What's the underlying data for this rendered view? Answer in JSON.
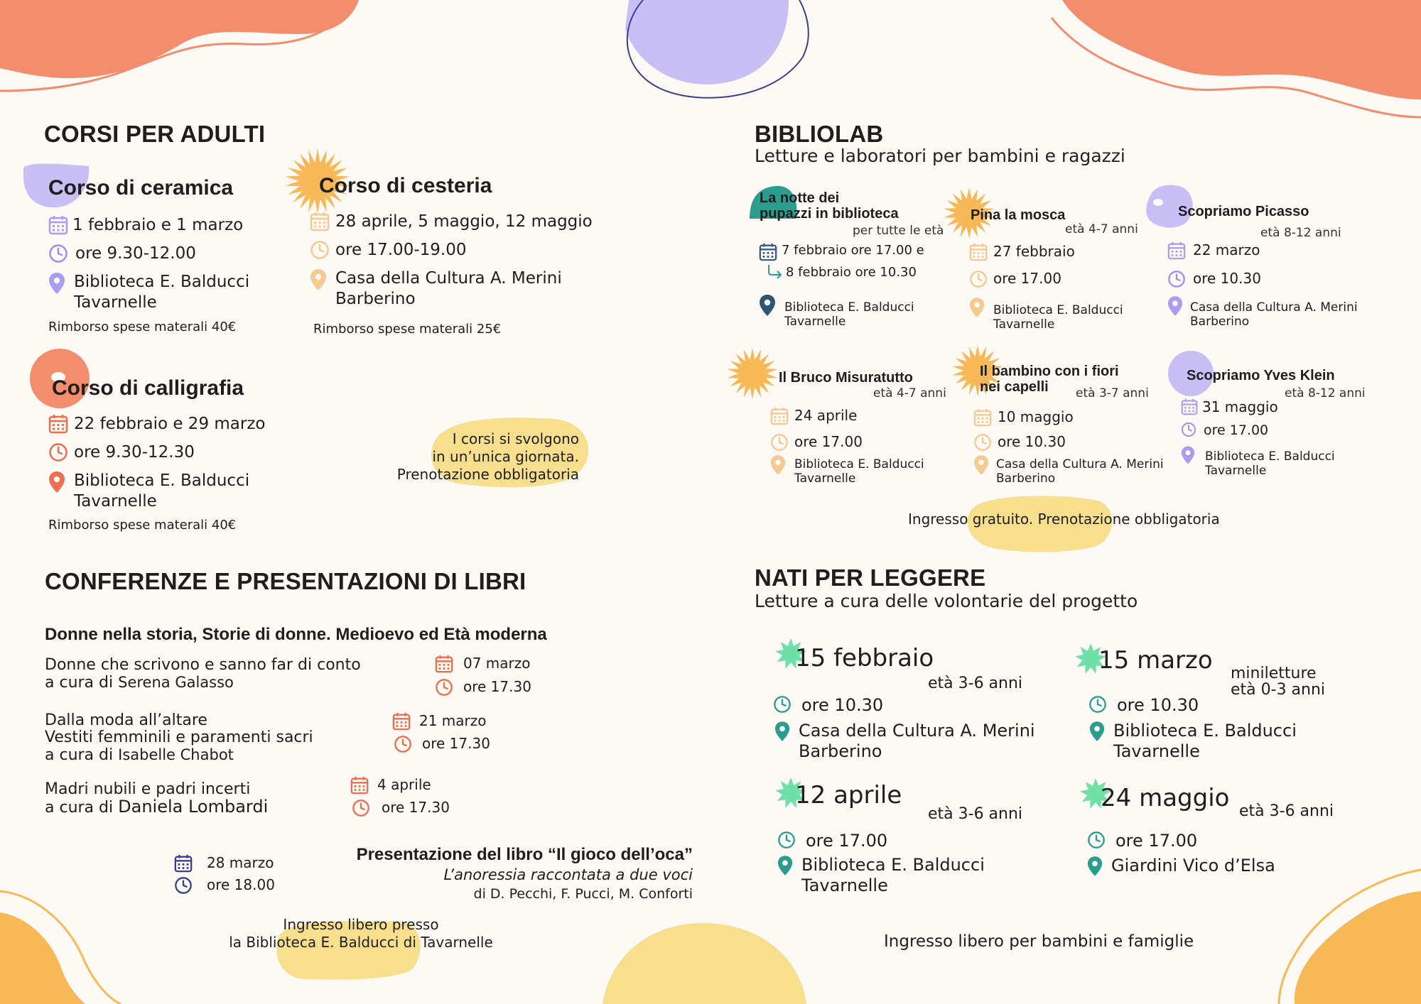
{
  "colors": {
    "coral": "#f28d6d",
    "lavender": "#c8c0f5",
    "yellow": "#f7df8e",
    "orange": "#f7b957",
    "teal": "#2a9d8f",
    "green": "#6fe0a8",
    "navy": "#3a3f8f",
    "calendar_orange": "#f0a36b",
    "purple_icon": "#9f8ff0",
    "red_icon": "#ee6e4d"
  },
  "adulti": {
    "heading": "CORSI PER ADULTI",
    "ceramica": {
      "title": "Corso di ceramica",
      "date": "1 febbraio e 1 marzo",
      "time": "ore 9.30-12.00",
      "place1": "Biblioteca E. Balducci",
      "place2": "Tavarnelle",
      "fee": "Rimborso spese materali 40€"
    },
    "cesteria": {
      "title": "Corso di cesteria",
      "date": "28 aprile, 5 maggio, 12 maggio",
      "time": "ore 17.00-19.00",
      "place1": "Casa della Cultura A. Merini",
      "place2": "Barberino",
      "fee": "Rimborso spese materali 25€"
    },
    "calligrafia": {
      "title": "Corso di calligrafia",
      "date": "22 febbraio  e 29 marzo",
      "time": "ore 9.30-12.30",
      "place1": "Biblioteca E. Balducci",
      "place2": "Tavarnelle",
      "fee": "Rimborso spese materali 40€"
    },
    "note1": "I corsi si svolgono",
    "note2": "in un’unica giornata.",
    "note3": "Prenotazione obbligatoria"
  },
  "conferenze": {
    "heading": "CONFERENZE E PRESENTAZIONI DI LIBRI",
    "series_title": "Donne nella storia, Storie di donne.  Medioevo ed Età moderna",
    "items": [
      {
        "line1": "Donne che scrivono e sanno far di conto",
        "cura": "a cura di",
        "author": "Serena Galasso",
        "date": "07 marzo",
        "time": "ore 17.30"
      },
      {
        "line1": "Dalla moda all’altare",
        "line2": "Vestiti femminili e paramenti sacri",
        "cura": "a cura di",
        "author": "Isabelle Chabot",
        "date": "21 marzo",
        "time": "ore 17.30"
      },
      {
        "line1": "Madri nubili e padri incerti",
        "cura": "a cura di",
        "author": "Daniela Lombardi",
        "date": "4 aprile",
        "time": "ore 17.30"
      }
    ],
    "presentazione": {
      "date": "28 marzo",
      "time": "ore 18.00",
      "title": "Presentazione del libro “Il gioco dell’oca”",
      "subtitle": "L’anoressia raccontata a due voci",
      "authors": "di D. Pecchi, F. Pucci, M. Conforti"
    },
    "note1": "Ingresso libero presso",
    "note2": "la Biblioteca E. Balducci di Tavarnelle"
  },
  "bibliolab": {
    "heading": "BIBLIOLAB",
    "subheading": "Letture e laboratori per bambini e ragazzi",
    "labs": [
      {
        "title1": "La notte dei",
        "title2": "pupazzi in biblioteca",
        "age": "per tutte le età",
        "date1": "7 febbraio ore 17.00 e",
        "date2": "8 febbraio ore 10.30",
        "place1": "Biblioteca E. Balducci",
        "place2": "Tavarnelle"
      },
      {
        "title1": "Pina la mosca",
        "age": "età 4-7 anni",
        "date": "27 febbraio",
        "time": "ore 17.00",
        "place1": "Biblioteca E. Balducci",
        "place2": "Tavarnelle"
      },
      {
        "title1": "Scopriamo Picasso",
        "age": "età 8-12 anni",
        "date": "22 marzo",
        "time": "ore 10.30",
        "place1": "Casa della Cultura A. Merini",
        "place2": "Barberino"
      },
      {
        "title1": "Il Bruco Misuratutto",
        "age": "età 4-7 anni",
        "date": "24 aprile",
        "time": "ore 17.00",
        "place1": "Biblioteca E. Balducci",
        "place2": "Tavarnelle"
      },
      {
        "title1": "Il bambino con i fiori",
        "title2": "nei capelli",
        "age": "età 3-7 anni",
        "date": "10 maggio",
        "time": "ore 10.30",
        "place1": "Casa della Cultura A. Merini",
        "place2": "Barberino"
      },
      {
        "title1": "Scopriamo Yves Klein",
        "age": "età 8-12 anni",
        "date": "31 maggio",
        "time": "ore 17.00",
        "place1": "Biblioteca E. Balducci",
        "place2": "Tavarnelle"
      }
    ],
    "note": "Ingresso gratuito. Prenotazione obbligatoria"
  },
  "npl": {
    "heading": "NATI PER LEGGERE",
    "subheading": "Letture a cura delle volontarie del progetto",
    "events": [
      {
        "date": "15 febbraio",
        "age": "età 3-6 anni",
        "time": "ore 10.30",
        "place1": "Casa della Cultura A. Merini",
        "place2": "Barberino"
      },
      {
        "date": "15 marzo",
        "age1": "miniletture",
        "age2": "età 0-3 anni",
        "time": "ore 10.30",
        "place1": "Biblioteca E. Balducci",
        "place2": "Tavarnelle"
      },
      {
        "date": "12 aprile",
        "age": "età 3-6 anni",
        "time": "ore 17.00",
        "place1": "Biblioteca E. Balducci",
        "place2": "Tavarnelle"
      },
      {
        "date": "24 maggio",
        "age": "età 3-6 anni",
        "time": "ore 17.00",
        "place1": "Giardini Vico d’Elsa"
      }
    ],
    "note": "Ingresso libero per bambini e famiglie"
  }
}
